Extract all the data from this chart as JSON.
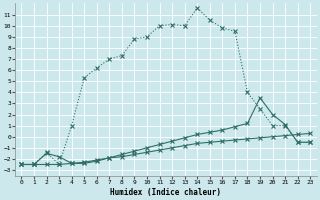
{
  "xlabel": "Humidex (Indice chaleur)",
  "bg_color": "#cce8ec",
  "grid_color": "#ffffff",
  "line_color": "#2d6e65",
  "xlim": [
    -0.5,
    23.5
  ],
  "ylim": [
    -3.5,
    12.0
  ],
  "xticks": [
    0,
    1,
    2,
    3,
    4,
    5,
    6,
    7,
    8,
    9,
    10,
    11,
    12,
    13,
    14,
    15,
    16,
    17,
    18,
    19,
    20,
    21,
    22,
    23
  ],
  "yticks": [
    -3,
    -2,
    -1,
    0,
    1,
    2,
    3,
    4,
    5,
    6,
    7,
    8,
    9,
    10,
    11
  ],
  "curve1_x": [
    0,
    1,
    2,
    3,
    4,
    5,
    6,
    7,
    8,
    9,
    10,
    11,
    12,
    13,
    14,
    15,
    16,
    17,
    18,
    19,
    20,
    21,
    22,
    23
  ],
  "curve1_y": [
    -2.5,
    -2.5,
    -1.4,
    -2.5,
    1.0,
    5.3,
    6.2,
    7.0,
    7.3,
    8.8,
    9.0,
    10.0,
    10.1,
    10.0,
    11.6,
    10.5,
    9.8,
    9.5,
    4.0,
    2.5,
    1.0,
    1.0,
    -0.5,
    -0.5
  ],
  "curve2_x": [
    0,
    1,
    2,
    3,
    4,
    5,
    6,
    7,
    8,
    9,
    10,
    11,
    12,
    13,
    14,
    15,
    16,
    17,
    18,
    19,
    20,
    21,
    22,
    23
  ],
  "curve2_y": [
    -2.5,
    -2.5,
    -2.5,
    -2.5,
    -2.4,
    -2.3,
    -2.1,
    -1.9,
    -1.8,
    -1.6,
    -1.4,
    -1.2,
    -1.0,
    -0.8,
    -0.6,
    -0.5,
    -0.4,
    -0.3,
    -0.2,
    -0.1,
    0.0,
    0.1,
    0.2,
    0.3
  ],
  "curve3_x": [
    0,
    1,
    2,
    3,
    4,
    5,
    6,
    7,
    8,
    9,
    10,
    11,
    12,
    13,
    14,
    15,
    16,
    17,
    18,
    19,
    20,
    21,
    22,
    23
  ],
  "curve3_y": [
    -2.5,
    -2.5,
    -1.5,
    -1.8,
    -2.4,
    -2.4,
    -2.2,
    -1.9,
    -1.6,
    -1.3,
    -1.0,
    -0.7,
    -0.4,
    -0.1,
    0.2,
    0.4,
    0.6,
    0.9,
    1.2,
    3.5,
    2.0,
    1.1,
    -0.5,
    -0.5
  ]
}
